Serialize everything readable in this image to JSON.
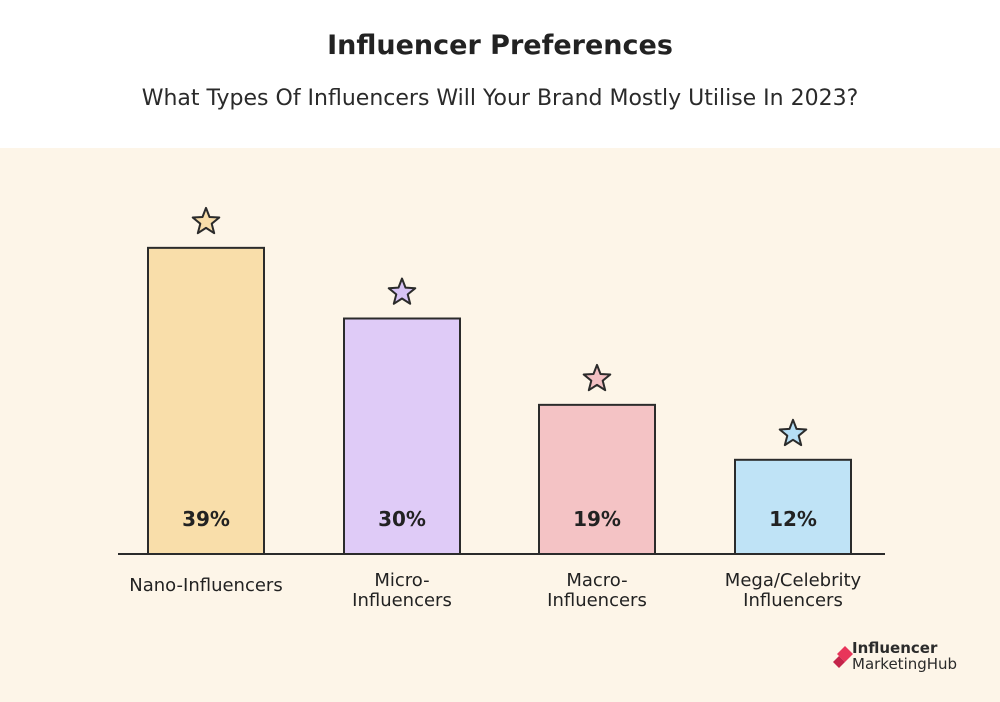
{
  "chart_data": {
    "type": "bar",
    "title": "Influencer Preferences",
    "subtitle": "What Types Of Influencers Will Your Brand Mostly Utilise In 2023?",
    "categories": [
      "Nano-Influencers",
      "Micro-\nInfluencers",
      "Macro-\nInfluencers",
      "Mega/Celebrity\nInfluencers"
    ],
    "values": [
      39,
      30,
      19,
      12
    ],
    "value_labels": [
      "39%",
      "30%",
      "19%",
      "12%"
    ],
    "unit": "%",
    "ylim": [
      0,
      40
    ],
    "grid": false,
    "colors": [
      "#f9deaa",
      "#dfcbf7",
      "#f4c3c5",
      "#bfe3f6"
    ],
    "star_colors": [
      "#f9deaa",
      "#d7c3f5",
      "#f2c0c3",
      "#b5def5"
    ]
  },
  "branding": {
    "line1": "Influencer",
    "line2": "MarketingHub",
    "accent": "#e8355a"
  }
}
